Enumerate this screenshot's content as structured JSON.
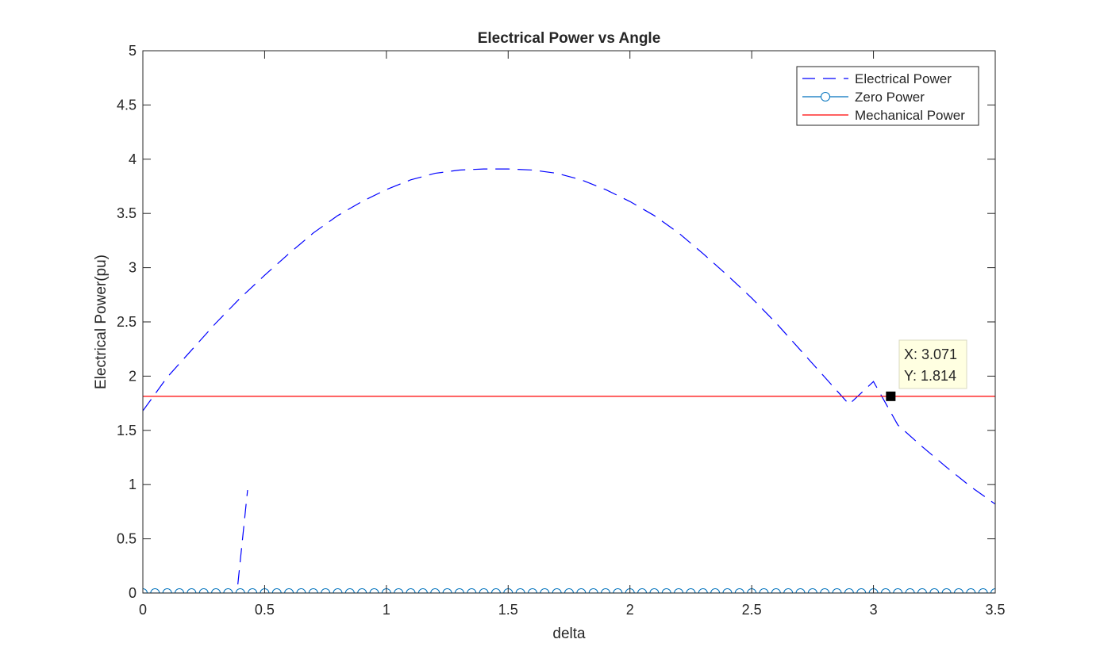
{
  "chart_data": {
    "type": "line",
    "title": "Electrical Power vs Angle",
    "xlabel": "delta",
    "ylabel": "Electrical Power(pu)",
    "xlim": [
      0,
      3.5
    ],
    "ylim": [
      0,
      5
    ],
    "xticks": [
      0,
      0.5,
      1,
      1.5,
      2,
      2.5,
      3,
      3.5
    ],
    "xtick_labels": [
      "0",
      "0.5",
      "1",
      "1.5",
      "2",
      "2.5",
      "3",
      "3.5"
    ],
    "yticks": [
      0,
      0.5,
      1,
      1.5,
      2,
      2.5,
      3,
      3.5,
      4,
      4.5,
      5
    ],
    "ytick_labels": [
      "0",
      "0.5",
      "1",
      "1.5",
      "2",
      "2.5",
      "3",
      "3.5",
      "4",
      "4.5",
      "5"
    ],
    "grid": false,
    "legend_position": "top-right",
    "series": [
      {
        "name": "Electrical Power",
        "color": "#0000ff",
        "line_style": "dashed",
        "marker": "none",
        "segments": [
          {
            "x": [
              0,
              0.1,
              0.2,
              0.3,
              0.4,
              0.5,
              0.6,
              0.7,
              0.8,
              0.9,
              1.0,
              1.1,
              1.2,
              1.3,
              1.4,
              1.5,
              1.6,
              1.7,
              1.8,
              1.9,
              2.0,
              2.1,
              2.2,
              2.3,
              2.4,
              2.5,
              2.6,
              2.7,
              2.8,
              2.9,
              3.0,
              3.1,
              3.2,
              3.3,
              3.4,
              3.5
            ],
            "y": [
              1.68,
              1.99,
              2.24,
              2.49,
              2.72,
              2.93,
              3.13,
              3.32,
              3.48,
              3.61,
              3.72,
              3.81,
              3.87,
              3.9,
              3.91,
              3.91,
              3.9,
              3.87,
              3.81,
              3.72,
              3.61,
              3.48,
              3.32,
              3.13,
              2.93,
              2.72,
              2.49,
              2.24,
              1.99,
              1.74,
              1.95,
              1.55,
              1.35,
              1.16,
              0.98,
              0.82
            ]
          },
          {
            "x": [
              0.39,
              0.43
            ],
            "y": [
              0.08,
              0.95
            ]
          }
        ]
      },
      {
        "name": "Zero Power",
        "color": "#0072bd",
        "line_style": "solid",
        "marker": "circle",
        "x": [
          0,
          0.05,
          0.1,
          0.15,
          0.2,
          0.25,
          0.3,
          0.35,
          0.4,
          0.45,
          0.5,
          0.55,
          0.6,
          0.65,
          0.7,
          0.75,
          0.8,
          0.85,
          0.9,
          0.95,
          1.0,
          1.05,
          1.1,
          1.15,
          1.2,
          1.25,
          1.3,
          1.35,
          1.4,
          1.45,
          1.5,
          1.55,
          1.6,
          1.65,
          1.7,
          1.75,
          1.8,
          1.85,
          1.9,
          1.95,
          2.0,
          2.05,
          2.1,
          2.15,
          2.2,
          2.25,
          2.3,
          2.35,
          2.4,
          2.45,
          2.5,
          2.55,
          2.6,
          2.65,
          2.7,
          2.75,
          2.8,
          2.85,
          2.9,
          2.95,
          3.0,
          3.05,
          3.1,
          3.15,
          3.2,
          3.25,
          3.3,
          3.35,
          3.4,
          3.45,
          3.5
        ],
        "y": [
          0,
          0,
          0,
          0,
          0,
          0,
          0,
          0,
          0,
          0,
          0,
          0,
          0,
          0,
          0,
          0,
          0,
          0,
          0,
          0,
          0,
          0,
          0,
          0,
          0,
          0,
          0,
          0,
          0,
          0,
          0,
          0,
          0,
          0,
          0,
          0,
          0,
          0,
          0,
          0,
          0,
          0,
          0,
          0,
          0,
          0,
          0,
          0,
          0,
          0,
          0,
          0,
          0,
          0,
          0,
          0,
          0,
          0,
          0,
          0,
          0,
          0,
          0,
          0,
          0,
          0,
          0,
          0,
          0,
          0,
          0
        ]
      },
      {
        "name": "Mechanical Power",
        "color": "#ff0000",
        "line_style": "solid",
        "marker": "none",
        "x": [
          0,
          3.5
        ],
        "y": [
          1.814,
          1.814
        ]
      }
    ],
    "datatip": {
      "x": 3.071,
      "y": 1.814,
      "x_text": "X: 3.071",
      "y_text": "Y: 1.814"
    }
  }
}
